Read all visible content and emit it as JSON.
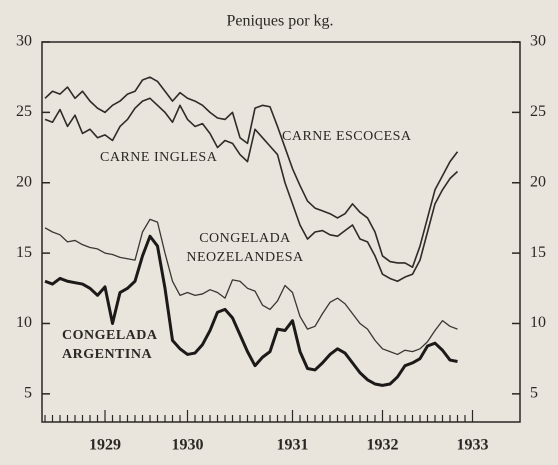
{
  "chart_data": {
    "type": "line",
    "title": "Peniques por kg.",
    "categories": [
      null,
      null,
      null,
      null,
      null,
      null,
      null,
      null,
      "1929",
      null,
      null,
      null,
      null,
      null,
      null,
      null,
      null,
      null,
      null,
      "1930",
      null,
      null,
      null,
      null,
      null,
      null,
      null,
      null,
      null,
      null,
      null,
      null,
      null,
      "1931",
      null,
      null,
      null,
      null,
      null,
      null,
      null,
      null,
      null,
      null,
      null,
      "1932",
      null,
      null,
      null,
      null,
      null,
      null,
      null,
      null,
      null,
      null,
      null,
      "1933"
    ],
    "series": [
      {
        "name": "CARNE ESCOCESA",
        "color": "#2e2b28",
        "values": [
          26.0,
          26.5,
          26.3,
          26.8,
          26.0,
          26.5,
          25.8,
          25.3,
          25.0,
          25.5,
          25.8,
          26.3,
          26.5,
          27.3,
          27.5,
          27.2,
          26.5,
          25.8,
          26.4,
          26.0,
          25.8,
          25.5,
          25.0,
          24.6,
          24.5,
          25.0,
          23.2,
          22.8,
          25.3,
          25.5,
          25.4,
          24.0,
          22.5,
          21.0,
          19.8,
          18.7,
          18.2,
          18.0,
          17.8,
          17.5,
          17.8,
          18.5,
          17.9,
          17.5,
          16.5,
          14.8,
          14.4,
          14.3,
          14.3,
          14.0,
          15.5,
          17.5,
          19.5,
          20.5,
          21.5,
          22.2,
          null,
          null
        ]
      },
      {
        "name": "CARNE INGLESA",
        "color": "#2e2b28",
        "values": [
          24.5,
          24.3,
          25.2,
          24.0,
          24.8,
          23.5,
          23.8,
          23.2,
          23.4,
          23.0,
          24.0,
          24.5,
          25.3,
          25.8,
          26.0,
          25.5,
          25.0,
          24.3,
          25.5,
          24.5,
          24.0,
          24.2,
          23.5,
          22.5,
          23.0,
          22.8,
          22.0,
          21.5,
          23.8,
          23.2,
          22.6,
          22.0,
          20.0,
          18.5,
          17.0,
          16.0,
          16.5,
          16.6,
          16.3,
          16.2,
          16.6,
          17.0,
          16.0,
          15.8,
          14.8,
          13.5,
          13.2,
          13.0,
          13.3,
          13.5,
          14.5,
          16.5,
          18.5,
          19.5,
          20.3,
          20.8,
          null,
          null
        ]
      },
      {
        "name": "CONGELADA NEOZELANDESA",
        "color": "#3a3733",
        "values": [
          16.8,
          16.5,
          16.3,
          15.8,
          15.9,
          15.6,
          15.4,
          15.3,
          15.0,
          14.9,
          14.7,
          14.6,
          14.5,
          16.5,
          17.4,
          17.2,
          15.0,
          13.0,
          12.0,
          12.2,
          12.0,
          12.1,
          12.4,
          12.2,
          11.8,
          13.1,
          13.0,
          12.5,
          12.3,
          11.3,
          11.0,
          11.6,
          12.7,
          12.2,
          10.5,
          9.6,
          9.8,
          10.7,
          11.5,
          11.8,
          11.4,
          10.7,
          10.0,
          9.6,
          8.8,
          8.2,
          8.0,
          7.8,
          8.1,
          8.0,
          8.2,
          8.7,
          9.5,
          10.2,
          9.8,
          9.6,
          null,
          null
        ]
      },
      {
        "name": "CONGELADA ARGENTINA",
        "color": "#1c1a18",
        "values": [
          13.0,
          12.8,
          13.2,
          13.0,
          12.9,
          12.8,
          12.5,
          12.0,
          12.6,
          10.0,
          12.2,
          12.5,
          13.0,
          14.8,
          16.2,
          15.5,
          12.5,
          8.8,
          8.2,
          7.8,
          7.9,
          8.5,
          9.5,
          10.8,
          11.0,
          10.4,
          9.2,
          8.0,
          7.0,
          7.6,
          8.0,
          9.6,
          9.5,
          10.2,
          8.0,
          6.8,
          6.7,
          7.2,
          7.8,
          8.2,
          7.9,
          7.2,
          6.5,
          6.0,
          5.7,
          5.6,
          5.7,
          6.2,
          7.0,
          7.2,
          7.5,
          8.4,
          8.6,
          8.1,
          7.4,
          7.3,
          null,
          null
        ]
      }
    ],
    "ylim": [
      3,
      30
    ],
    "yticks": [
      5,
      10,
      15,
      20,
      25,
      30
    ]
  }
}
